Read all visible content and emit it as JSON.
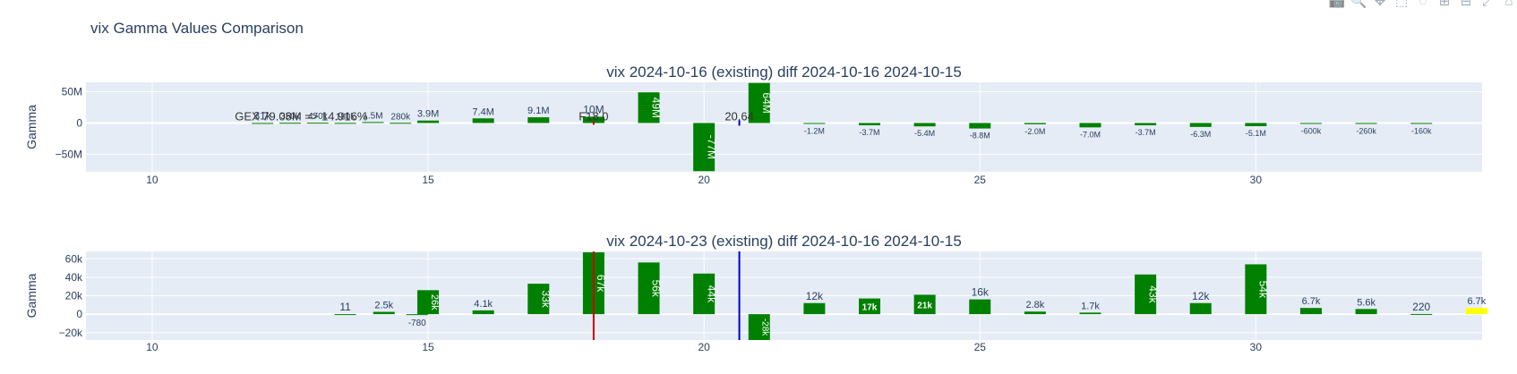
{
  "figure_title": "vix Gamma Values Comparison",
  "modebar": [
    {
      "name": "camera-icon",
      "glyph": "📷"
    },
    {
      "name": "zoom-icon",
      "glyph": "🔍"
    },
    {
      "name": "pan-icon",
      "glyph": "✥"
    },
    {
      "name": "box-select-icon",
      "glyph": "⬚"
    },
    {
      "name": "lasso-icon",
      "glyph": "◌"
    },
    {
      "name": "zoom-in-icon",
      "glyph": "⊞"
    },
    {
      "name": "zoom-out-icon",
      "glyph": "⊟"
    },
    {
      "name": "autoscale-icon",
      "glyph": "⤢"
    },
    {
      "name": "reset-axes-icon",
      "glyph": "⌂"
    }
  ],
  "colors": {
    "plot_bg": "#e5ecf6",
    "bar": "#008000",
    "highlight_bar": "#ffff00",
    "spot_line": "#0000cc",
    "flip_line": "#cc0000",
    "text": "#2a3f5f"
  },
  "chart_data": [
    {
      "type": "bar",
      "title": "vix 2024-10-16 (existing) diff 2024-10-16 2024-10-15",
      "ylabel": "Gamma",
      "xlim": [
        8.8,
        34.1
      ],
      "ylim": [
        -78000000,
        65000000
      ],
      "xticks": [
        10,
        15,
        20,
        25,
        30
      ],
      "yticks": [
        {
          "v": 50000000,
          "label": "50M"
        },
        {
          "v": 0,
          "label": "0"
        },
        {
          "v": -50000000,
          "label": "−50M"
        }
      ],
      "grid": true,
      "annotations": [
        {
          "text": "GEX 79.08M => 14.916%",
          "x": 12.7,
          "y": 4000000
        },
        {
          "text": "F18.0",
          "x": 18.0,
          "y": 4000000
        },
        {
          "text": "20.64",
          "x": 20.64,
          "y": 4000000
        }
      ],
      "spot_marker": 20.64,
      "flip_marker": 18.0,
      "bars": [
        {
          "x": 12.0,
          "value": 31000,
          "label": "31k",
          "label_size": 12
        },
        {
          "x": 12.5,
          "value": 350000,
          "label": "350k",
          "label_size": 10
        },
        {
          "x": 13.0,
          "value": 470000,
          "label": "470k",
          "label_size": 10
        },
        {
          "x": 13.5,
          "value": 180000,
          "label": "180k",
          "label_size": 10
        },
        {
          "x": 14.0,
          "value": 1500000,
          "label": "1.5M",
          "label_size": 10
        },
        {
          "x": 14.5,
          "value": 280000,
          "label": "280k",
          "label_size": 10
        },
        {
          "x": 15,
          "value": 3900000,
          "label": "3.9M",
          "label_size": 11
        },
        {
          "x": 16,
          "value": 7400000,
          "label": "7.4M",
          "label_size": 11
        },
        {
          "x": 17,
          "value": 9100000,
          "label": "9.1M",
          "label_size": 11
        },
        {
          "x": 18,
          "value": 10000000,
          "label": "10M",
          "label_size": 12
        },
        {
          "x": 19,
          "value": 49000000,
          "label": "49M",
          "label_size": 12,
          "inside": true
        },
        {
          "x": 20,
          "value": -77000000,
          "label": "-77M",
          "label_size": 12,
          "inside": true
        },
        {
          "x": 21,
          "value": 64000000,
          "label": "64M",
          "label_size": 12,
          "inside": true
        },
        {
          "x": 22,
          "value": -1200000,
          "label": "-1.2M",
          "label_size": 9
        },
        {
          "x": 23,
          "value": -3700000,
          "label": "-3.7M",
          "label_size": 9
        },
        {
          "x": 24,
          "value": -5400000,
          "label": "-5.4M",
          "label_size": 9
        },
        {
          "x": 25,
          "value": -8800000,
          "label": "-8.8M",
          "label_size": 9
        },
        {
          "x": 26,
          "value": -2000000,
          "label": "-2.0M",
          "label_size": 9
        },
        {
          "x": 27,
          "value": -7000000,
          "label": "-7.0M",
          "label_size": 9
        },
        {
          "x": 28,
          "value": -3700000,
          "label": "-3.7M",
          "label_size": 9
        },
        {
          "x": 29,
          "value": -6300000,
          "label": "-6.3M",
          "label_size": 9
        },
        {
          "x": 30,
          "value": -5100000,
          "label": "-5.1M",
          "label_size": 9
        },
        {
          "x": 31,
          "value": -600000,
          "label": "-600k",
          "label_size": 9
        },
        {
          "x": 32,
          "value": -260000,
          "label": "-260k",
          "label_size": 9
        },
        {
          "x": 33,
          "value": -160000,
          "label": "-160k",
          "label_size": 9
        }
      ]
    },
    {
      "type": "bar",
      "title": "vix 2024-10-23 (existing) diff 2024-10-16 2024-10-15",
      "ylabel": "Gamma",
      "xlim": [
        8.8,
        34.1
      ],
      "ylim": [
        -28000,
        68000
      ],
      "xticks": [
        10,
        15,
        20,
        25,
        30
      ],
      "yticks": [
        {
          "v": 60000,
          "label": "60k"
        },
        {
          "v": 40000,
          "label": "40k"
        },
        {
          "v": 20000,
          "label": "20k"
        },
        {
          "v": 0,
          "label": "0"
        },
        {
          "v": -20000,
          "label": "−20k"
        }
      ],
      "grid": true,
      "annotations": [],
      "spot_marker": 20.64,
      "flip_marker": 18.0,
      "bars": [
        {
          "x": 13.5,
          "value": 11,
          "label": "11",
          "label_size": 12
        },
        {
          "x": 14.2,
          "value": 2500,
          "label": "2.5k",
          "label_size": 11
        },
        {
          "x": 14.8,
          "value": -780,
          "label": "-780",
          "label_size": 10
        },
        {
          "x": 15,
          "value": 26000,
          "label": "26k",
          "label_size": 11,
          "inside": true
        },
        {
          "x": 16,
          "value": 4100,
          "label": "4.1k",
          "label_size": 11
        },
        {
          "x": 17,
          "value": 33000,
          "label": "33k",
          "label_size": 12,
          "inside": true
        },
        {
          "x": 18,
          "value": 67000,
          "label": "67k",
          "label_size": 12,
          "inside": true
        },
        {
          "x": 19,
          "value": 56000,
          "label": "56k",
          "label_size": 12,
          "inside": true
        },
        {
          "x": 20,
          "value": 44000,
          "label": "44k",
          "label_size": 12,
          "inside": true
        },
        {
          "x": 21,
          "value": -28000,
          "label": "-28k",
          "label_size": 10,
          "inside": true
        },
        {
          "x": 22,
          "value": 12000,
          "label": "12k",
          "label_size": 12
        },
        {
          "x": 23,
          "value": 17000,
          "label": "17k",
          "label_size": 10,
          "inside": true,
          "horizontal": true
        },
        {
          "x": 24,
          "value": 21000,
          "label": "21k",
          "label_size": 10,
          "inside": true,
          "horizontal": true
        },
        {
          "x": 25,
          "value": 16000,
          "label": "16k",
          "label_size": 12
        },
        {
          "x": 26,
          "value": 2800,
          "label": "2.8k",
          "label_size": 11
        },
        {
          "x": 27,
          "value": 1700,
          "label": "1.7k",
          "label_size": 11
        },
        {
          "x": 28,
          "value": 43000,
          "label": "43k",
          "label_size": 12,
          "inside": true
        },
        {
          "x": 29,
          "value": 12000,
          "label": "12k",
          "label_size": 12
        },
        {
          "x": 30,
          "value": 54000,
          "label": "54k",
          "label_size": 12,
          "inside": true
        },
        {
          "x": 31,
          "value": 6700,
          "label": "6.7k",
          "label_size": 11
        },
        {
          "x": 32,
          "value": 5600,
          "label": "5.6k",
          "label_size": 11
        },
        {
          "x": 33,
          "value": 220,
          "label": "220",
          "label_size": 12
        },
        {
          "x": 34,
          "value": 6700,
          "label": "6.7k",
          "label_size": 11,
          "highlight": true
        }
      ]
    }
  ]
}
